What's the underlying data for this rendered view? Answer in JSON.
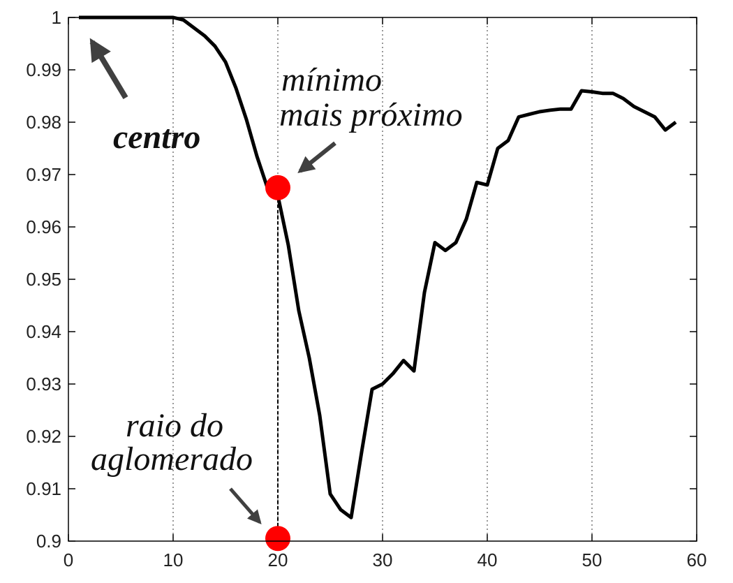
{
  "chart_data": {
    "type": "line",
    "title": "",
    "xlabel": "",
    "ylabel": "",
    "xlim": [
      0,
      60
    ],
    "ylim": [
      0.9,
      1.0
    ],
    "x_ticks": [
      0,
      10,
      20,
      30,
      40,
      50,
      60
    ],
    "y_ticks": [
      0.9,
      0.91,
      0.92,
      0.93,
      0.94,
      0.95,
      0.96,
      0.97,
      0.98,
      0.99,
      1
    ],
    "x_tick_labels": [
      "0",
      "10",
      "20",
      "30",
      "40",
      "50",
      "60"
    ],
    "y_tick_labels": [
      "0.9",
      "0.91",
      "0.92",
      "0.93",
      "0.94",
      "0.95",
      "0.96",
      "0.97",
      "0.98",
      "0.99",
      "1"
    ],
    "grid": "vertical dotted",
    "series": [
      {
        "color": "#000000",
        "x": [
          1,
          2,
          3,
          4,
          5,
          6,
          7,
          8,
          9,
          10,
          11,
          12,
          13,
          14,
          15,
          16,
          17,
          18,
          19,
          20,
          21,
          22,
          23,
          24,
          25,
          26,
          27,
          28,
          29,
          30,
          31,
          32,
          33,
          34,
          35,
          36,
          37,
          38,
          39,
          40,
          41,
          42,
          43,
          44,
          45,
          46,
          47,
          48,
          49,
          50,
          51,
          52,
          53,
          54,
          55,
          56,
          57,
          58
        ],
        "y": [
          1.0,
          1.0,
          1.0,
          1.0,
          1.0,
          1.0,
          1.0,
          1.0,
          1.0,
          1.0,
          0.9995,
          0.998,
          0.9965,
          0.9945,
          0.9915,
          0.9865,
          0.9805,
          0.9735,
          0.9675,
          0.966,
          0.9565,
          0.944,
          0.935,
          0.924,
          0.909,
          0.906,
          0.9045,
          0.917,
          0.929,
          0.93,
          0.932,
          0.9345,
          0.9325,
          0.9475,
          0.957,
          0.9555,
          0.957,
          0.9615,
          0.9685,
          0.968,
          0.975,
          0.9765,
          0.981,
          0.9815,
          0.982,
          0.9823,
          0.9825,
          0.9825,
          0.986,
          0.9858,
          0.9855,
          0.9855,
          0.9845,
          0.983,
          0.982,
          0.981,
          0.9785,
          0.98
        ]
      }
    ],
    "markers": [
      {
        "x": 20,
        "y": 0.9675,
        "color": "#ff0000"
      },
      {
        "x": 20,
        "y": 0.9005,
        "color": "#ff0000"
      }
    ],
    "annotations": [
      {
        "text": "centro",
        "bold": true
      },
      {
        "line1": "mínimo",
        "line2": "mais próximo"
      },
      {
        "line1": "raio do",
        "line2": "aglomerado"
      }
    ],
    "colors": {
      "line": "#000000",
      "marker": "#ff0000",
      "arrow": "#404040"
    }
  }
}
